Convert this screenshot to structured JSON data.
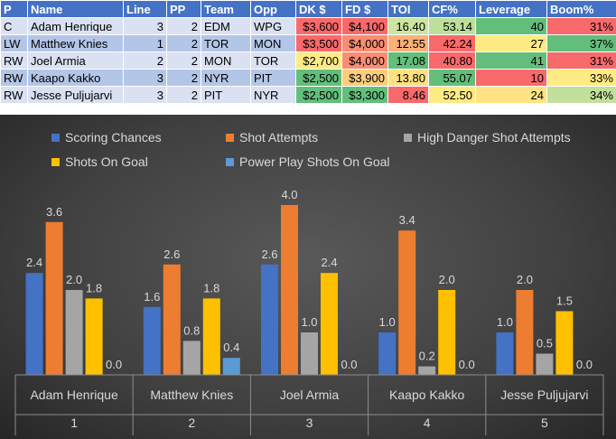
{
  "table": {
    "headers": [
      "P",
      "Name",
      "Line",
      "PP",
      "Team",
      "Opp",
      "DK $",
      "FD $",
      "TOI",
      "CF%",
      "Leverage",
      "Boom%"
    ],
    "rows": [
      {
        "p": "C",
        "name": "Adam Henrique",
        "line": "3",
        "pp": "2",
        "team": "EDM",
        "opp": "WPG",
        "dk": "$3,600",
        "fd": "$4,100",
        "toi": "16.40",
        "cf": "53.14",
        "leverage": "40",
        "boom": "31%"
      },
      {
        "p": "LW",
        "name": "Matthew Knies",
        "line": "1",
        "pp": "2",
        "team": "TOR",
        "opp": "MON",
        "dk": "$3,500",
        "fd": "$4,000",
        "toi": "12.55",
        "cf": "42.24",
        "leverage": "27",
        "boom": "37%"
      },
      {
        "p": "RW",
        "name": "Joel Armia",
        "line": "2",
        "pp": "2",
        "team": "MON",
        "opp": "TOR",
        "dk": "$2,700",
        "fd": "$4,000",
        "toi": "17.08",
        "cf": "40.80",
        "leverage": "41",
        "boom": "31%"
      },
      {
        "p": "RW",
        "name": "Kaapo Kakko",
        "line": "3",
        "pp": "2",
        "team": "NYR",
        "opp": "PIT",
        "dk": "$2,500",
        "fd": "$3,900",
        "toi": "13.80",
        "cf": "55.07",
        "leverage": "10",
        "boom": "33%"
      },
      {
        "p": "RW",
        "name": "Jesse Puljujarvi",
        "line": "3",
        "pp": "2",
        "team": "PIT",
        "opp": "NYR",
        "dk": "$2,500",
        "fd": "$3,300",
        "toi": "8.46",
        "cf": "52.50",
        "leverage": "24",
        "boom": "34%"
      }
    ],
    "cell_colors": {
      "dk": [
        "#f8696b",
        "#f8696b",
        "#ffeb84",
        "#63be7b",
        "#63be7b"
      ],
      "fd": [
        "#f8696b",
        "#f98d72",
        "#f98d72",
        "#fdcd7e",
        "#63be7b"
      ],
      "toi": [
        "#cde5a0",
        "#fbb078",
        "#63be7b",
        "#fee182",
        "#f8696b"
      ],
      "cf": [
        "#bcdf9a",
        "#f8696b",
        "#f8696b",
        "#63be7b",
        "#ffeb84"
      ],
      "leverage": [
        "#63be7b",
        "#ffeb84",
        "#63be7b",
        "#f8696b",
        "#ffe283"
      ],
      "boom": [
        "#f8696b",
        "#63be7b",
        "#f8696b",
        "#ffeb84",
        "#c2e09c"
      ]
    }
  },
  "chart_data": {
    "type": "bar",
    "title": "",
    "xlabel": "",
    "ylabel": "",
    "categories": [
      "Adam Henrique",
      "Matthew Knies",
      "Joel Armia",
      "Kaapo Kakko",
      "Jesse Puljujarvi"
    ],
    "category_numbers": [
      "1",
      "2",
      "3",
      "4",
      "5"
    ],
    "ylim": [
      0,
      4.0
    ],
    "grid": false,
    "legend_position": "top",
    "series": [
      {
        "name": "Scoring Chances",
        "color": "#4472c4",
        "values": [
          2.4,
          1.6,
          2.6,
          1.0,
          1.0
        ]
      },
      {
        "name": "Shot Attempts",
        "color": "#ed7d31",
        "values": [
          3.6,
          2.6,
          4.0,
          3.4,
          2.0
        ]
      },
      {
        "name": "High Danger Shot Attempts",
        "color": "#a5a5a5",
        "values": [
          2.0,
          0.8,
          1.0,
          0.2,
          0.5
        ]
      },
      {
        "name": "Shots On Goal",
        "color": "#ffc000",
        "values": [
          1.8,
          1.8,
          2.4,
          2.0,
          1.5
        ]
      },
      {
        "name": "Power Play Shots On Goal",
        "color": "#5b9bd5",
        "values": [
          0.0,
          0.4,
          0.0,
          0.0,
          0.0
        ]
      }
    ]
  }
}
